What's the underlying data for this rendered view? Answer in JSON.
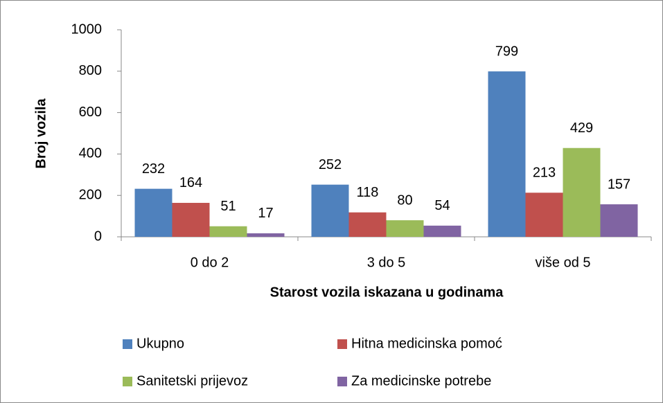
{
  "chart_data": {
    "type": "bar",
    "x_label": "Starost vozila iskazana u godinama",
    "y_label": "Broj vozila",
    "categories": [
      "0 do 2",
      "3 do 5",
      "više od 5"
    ],
    "series": [
      {
        "name": "Ukupno",
        "color": "#4f81bd",
        "values": [
          232,
          252,
          799
        ]
      },
      {
        "name": "Hitna medicinska pomoć",
        "color": "#c0504d",
        "values": [
          164,
          118,
          213
        ]
      },
      {
        "name": "Sanitetski prijevoz",
        "color": "#9bbb59",
        "values": [
          51,
          80,
          429
        ]
      },
      {
        "name": "Za medicinske potrebe",
        "color": "#8064a2",
        "values": [
          17,
          54,
          157
        ]
      }
    ],
    "ylim": [
      0,
      1000
    ],
    "yticks": [
      0,
      200,
      400,
      600,
      800,
      1000
    ],
    "grid": false,
    "legend": "bottom"
  }
}
